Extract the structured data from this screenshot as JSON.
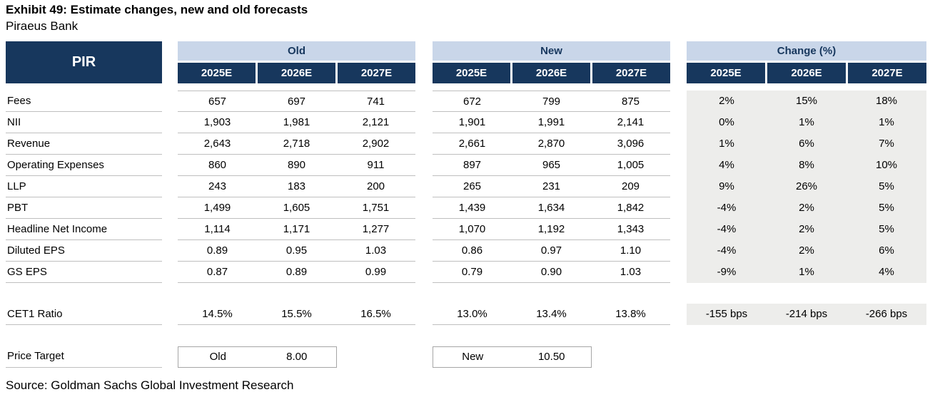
{
  "title": "Exhibit 49: Estimate changes, new and old forecasts",
  "subtitle": "Piraeus Bank",
  "source": "Source: Goldman Sachs Global Investment Research",
  "colors": {
    "navy": "#17375D",
    "header_band": "#C9D6E9",
    "change_bg": "#EDEDEB",
    "row_line": "#bfbfbf"
  },
  "table": {
    "ticker": "PIR",
    "group_old": "Old",
    "group_new": "New",
    "group_change": "Change (%)",
    "years": [
      "2025E",
      "2026E",
      "2027E"
    ],
    "rows": [
      {
        "label": "Fees",
        "old": [
          "657",
          "697",
          "741"
        ],
        "new": [
          "672",
          "799",
          "875"
        ],
        "change": [
          "2%",
          "15%",
          "18%"
        ]
      },
      {
        "label": "NII",
        "old": [
          "1,903",
          "1,981",
          "2,121"
        ],
        "new": [
          "1,901",
          "1,991",
          "2,141"
        ],
        "change": [
          "0%",
          "1%",
          "1%"
        ]
      },
      {
        "label": "Revenue",
        "old": [
          "2,643",
          "2,718",
          "2,902"
        ],
        "new": [
          "2,661",
          "2,870",
          "3,096"
        ],
        "change": [
          "1%",
          "6%",
          "7%"
        ]
      },
      {
        "label": "Operating Expenses",
        "old": [
          "860",
          "890",
          "911"
        ],
        "new": [
          "897",
          "965",
          "1,005"
        ],
        "change": [
          "4%",
          "8%",
          "10%"
        ]
      },
      {
        "label": "LLP",
        "old": [
          "243",
          "183",
          "200"
        ],
        "new": [
          "265",
          "231",
          "209"
        ],
        "change": [
          "9%",
          "26%",
          "5%"
        ]
      },
      {
        "label": "PBT",
        "old": [
          "1,499",
          "1,605",
          "1,751"
        ],
        "new": [
          "1,439",
          "1,634",
          "1,842"
        ],
        "change": [
          "-4%",
          "2%",
          "5%"
        ]
      },
      {
        "label": "Headline Net Income",
        "old": [
          "1,114",
          "1,171",
          "1,277"
        ],
        "new": [
          "1,070",
          "1,192",
          "1,343"
        ],
        "change": [
          "-4%",
          "2%",
          "5%"
        ]
      },
      {
        "label": "Diluted EPS",
        "old": [
          "0.89",
          "0.95",
          "1.03"
        ],
        "new": [
          "0.86",
          "0.97",
          "1.10"
        ],
        "change": [
          "-4%",
          "2%",
          "6%"
        ]
      },
      {
        "label": "GS EPS",
        "old": [
          "0.87",
          "0.89",
          "0.99"
        ],
        "new": [
          "0.79",
          "0.90",
          "1.03"
        ],
        "change": [
          "-9%",
          "1%",
          "4%"
        ]
      }
    ],
    "cet1": {
      "label": "CET1 Ratio",
      "old": [
        "14.5%",
        "15.5%",
        "16.5%"
      ],
      "new": [
        "13.0%",
        "13.4%",
        "13.8%"
      ],
      "change": [
        "-155 bps",
        "-214 bps",
        "-266 bps"
      ]
    },
    "price_target": {
      "label": "Price Target",
      "old_label": "Old",
      "old_value": "8.00",
      "new_label": "New",
      "new_value": "10.50"
    }
  },
  "chart_data": {
    "type": "table",
    "title": "Exhibit 49: Estimate changes, new and old forecasts — Piraeus Bank (PIR)",
    "column_groups": [
      "Old",
      "New",
      "Change (%)"
    ],
    "columns": [
      "2025E",
      "2026E",
      "2027E"
    ],
    "rows": [
      {
        "metric": "Fees",
        "old": [
          657,
          697,
          741
        ],
        "new": [
          672,
          799,
          875
        ],
        "change_pct": [
          2,
          15,
          18
        ]
      },
      {
        "metric": "NII",
        "old": [
          1903,
          1981,
          2121
        ],
        "new": [
          1901,
          1991,
          2141
        ],
        "change_pct": [
          0,
          1,
          1
        ]
      },
      {
        "metric": "Revenue",
        "old": [
          2643,
          2718,
          2902
        ],
        "new": [
          2661,
          2870,
          3096
        ],
        "change_pct": [
          1,
          6,
          7
        ]
      },
      {
        "metric": "Operating Expenses",
        "old": [
          860,
          890,
          911
        ],
        "new": [
          897,
          965,
          1005
        ],
        "change_pct": [
          4,
          8,
          10
        ]
      },
      {
        "metric": "LLP",
        "old": [
          243,
          183,
          200
        ],
        "new": [
          265,
          231,
          209
        ],
        "change_pct": [
          9,
          26,
          5
        ]
      },
      {
        "metric": "PBT",
        "old": [
          1499,
          1605,
          1751
        ],
        "new": [
          1439,
          1634,
          1842
        ],
        "change_pct": [
          -4,
          2,
          5
        ]
      },
      {
        "metric": "Headline Net Income",
        "old": [
          1114,
          1171,
          1277
        ],
        "new": [
          1070,
          1192,
          1343
        ],
        "change_pct": [
          -4,
          2,
          5
        ]
      },
      {
        "metric": "Diluted EPS",
        "old": [
          0.89,
          0.95,
          1.03
        ],
        "new": [
          0.86,
          0.97,
          1.1
        ],
        "change_pct": [
          -4,
          2,
          6
        ]
      },
      {
        "metric": "GS EPS",
        "old": [
          0.87,
          0.89,
          0.99
        ],
        "new": [
          0.79,
          0.9,
          1.03
        ],
        "change_pct": [
          -9,
          1,
          4
        ]
      },
      {
        "metric": "CET1 Ratio (%)",
        "old": [
          14.5,
          15.5,
          16.5
        ],
        "new": [
          13.0,
          13.4,
          13.8
        ],
        "change_bps": [
          -155,
          -214,
          -266
        ]
      },
      {
        "metric": "Price Target",
        "old": 8.0,
        "new": 10.5
      }
    ]
  }
}
